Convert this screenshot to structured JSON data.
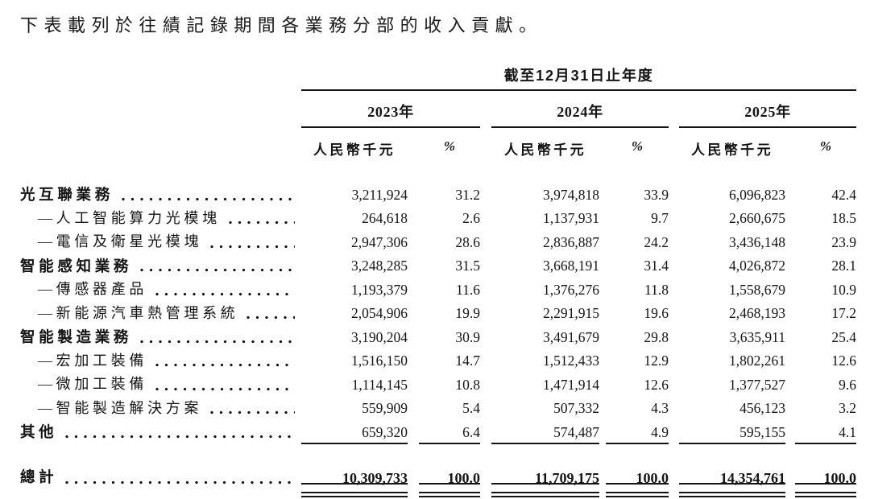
{
  "title": "下表載列於往績記錄期間各業務分部的收入貢獻。",
  "table": {
    "period_header": "截至12月31日止年度",
    "years": [
      "2023年",
      "2024年",
      "2025年"
    ],
    "unit_label": "人民幣千元",
    "percent_label": "%",
    "rows": [
      {
        "label": "光互聯業務",
        "bold": true,
        "indent": false,
        "underline": false,
        "values": [
          "3,211,924",
          "31.2",
          "3,974,818",
          "33.9",
          "6,096,823",
          "42.4"
        ]
      },
      {
        "label": "—人工智能算力光模塊",
        "bold": false,
        "indent": true,
        "underline": false,
        "values": [
          "264,618",
          "2.6",
          "1,137,931",
          "9.7",
          "2,660,675",
          "18.5"
        ]
      },
      {
        "label": "—電信及衛星光模塊",
        "bold": false,
        "indent": true,
        "underline": false,
        "values": [
          "2,947,306",
          "28.6",
          "2,836,887",
          "24.2",
          "3,436,148",
          "23.9"
        ]
      },
      {
        "label": "智能感知業務",
        "bold": true,
        "indent": false,
        "underline": false,
        "values": [
          "3,248,285",
          "31.5",
          "3,668,191",
          "31.4",
          "4,026,872",
          "28.1"
        ]
      },
      {
        "label": "—傳感器產品",
        "bold": false,
        "indent": true,
        "underline": false,
        "values": [
          "1,193,379",
          "11.6",
          "1,376,276",
          "11.8",
          "1,558,679",
          "10.9"
        ]
      },
      {
        "label": "—新能源汽車熱管理系統",
        "bold": false,
        "indent": true,
        "underline": false,
        "values": [
          "2,054,906",
          "19.9",
          "2,291,915",
          "19.6",
          "2,468,193",
          "17.2"
        ]
      },
      {
        "label": "智能製造業務",
        "bold": true,
        "indent": false,
        "underline": false,
        "values": [
          "3,190,204",
          "30.9",
          "3,491,679",
          "29.8",
          "3,635,911",
          "25.4"
        ]
      },
      {
        "label": "—宏加工裝備",
        "bold": false,
        "indent": true,
        "underline": false,
        "values": [
          "1,516,150",
          "14.7",
          "1,512,433",
          "12.9",
          "1,802,261",
          "12.6"
        ]
      },
      {
        "label": "—微加工裝備",
        "bold": false,
        "indent": true,
        "underline": false,
        "values": [
          "1,114,145",
          "10.8",
          "1,471,914",
          "12.6",
          "1,377,527",
          "9.6"
        ]
      },
      {
        "label": "—智能製造解決方案",
        "bold": false,
        "indent": true,
        "underline": false,
        "values": [
          "559,909",
          "5.4",
          "507,332",
          "4.3",
          "456,123",
          "3.2"
        ]
      },
      {
        "label": "其他",
        "bold": true,
        "indent": false,
        "underline": true,
        "values": [
          "659,320",
          "6.4",
          "574,487",
          "4.9",
          "595,155",
          "4.1"
        ]
      }
    ],
    "total": {
      "label": "總計",
      "values": [
        "10,309,733",
        "100.0",
        "11,709,175",
        "100.0",
        "14,354,761",
        "100.0"
      ]
    }
  },
  "colors": {
    "text": "#141414",
    "rule": "#141414",
    "background": "#ffffff"
  }
}
